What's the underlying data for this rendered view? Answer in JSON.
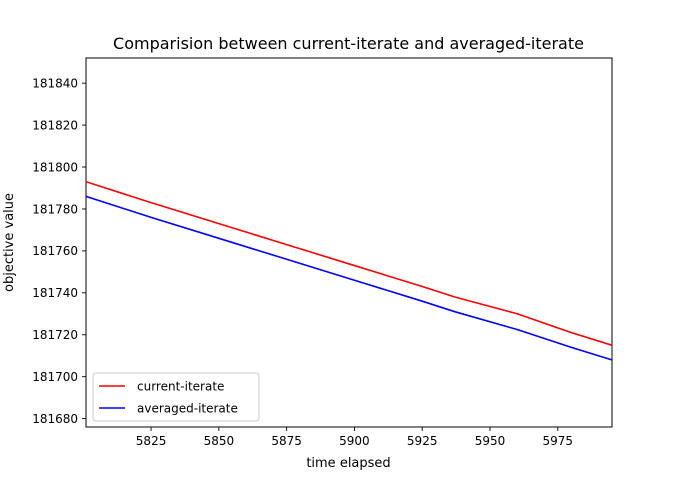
{
  "chart_data": {
    "type": "line",
    "title": "Comparision between current-iterate and averaged-iterate",
    "xlabel": "time elapsed",
    "ylabel": "objective value",
    "xlim": [
      5801,
      5995
    ],
    "ylim": [
      181676,
      181852
    ],
    "x_ticks": [
      5825,
      5850,
      5875,
      5900,
      5925,
      5950,
      5975
    ],
    "y_ticks": [
      181680,
      181700,
      181720,
      181740,
      181760,
      181780,
      181800,
      181820,
      181840
    ],
    "grid": false,
    "legend_position": "lower-left",
    "series": [
      {
        "name": "current-iterate",
        "color": "#ff0000",
        "x": [
          5801,
          5825,
          5850,
          5875,
          5900,
          5925,
          5937,
          5960,
          5980,
          5995
        ],
        "y": [
          181793,
          181783,
          181773,
          181763,
          181753,
          181743,
          181738,
          181730,
          181721,
          181715
        ]
      },
      {
        "name": "averaged-iterate",
        "color": "#0000ff",
        "x": [
          5801,
          5825,
          5850,
          5875,
          5900,
          5925,
          5937,
          5960,
          5980,
          5995
        ],
        "y": [
          181786,
          181776,
          181766,
          181756,
          181746,
          181736,
          181731,
          181722.5,
          181714,
          181708
        ]
      }
    ]
  }
}
